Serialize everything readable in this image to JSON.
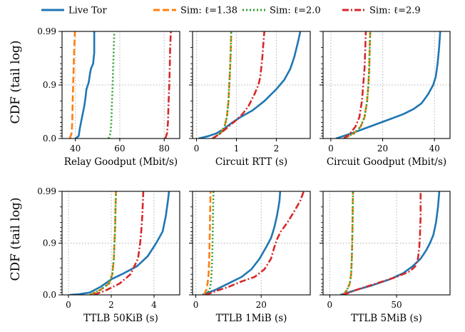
{
  "figure": {
    "ylabel": "CDF (tail log)"
  },
  "legend": [
    {
      "name": "Live Tor",
      "color": "#1f77b4",
      "dash": "solid"
    },
    {
      "name": "Sim: ℓ=1.38",
      "color": "#ff7f0e",
      "dash": "dashed"
    },
    {
      "name": "Sim: ℓ=2.0",
      "color": "#2ca02c",
      "dash": "dotted"
    },
    {
      "name": "Sim: ℓ=2.9",
      "color": "#d62728",
      "dash": "dashdot"
    }
  ],
  "chart_data": [
    {
      "type": "line",
      "xlabel": "Relay Goodput (Mbit/s)",
      "xlim": [
        34,
        87
      ],
      "xticks": [
        40,
        60,
        80
      ],
      "yticks": [
        "0.0",
        "0.9",
        "0.99"
      ],
      "grid": true,
      "series": [
        {
          "name": "Live Tor",
          "x": [
            40,
            41.5,
            42,
            43,
            44,
            44.5,
            45,
            46,
            46.5,
            47,
            48,
            48.5,
            48.5
          ],
          "y": [
            0,
            0.1,
            0.35,
            0.6,
            0.75,
            0.82,
            0.88,
            0.91,
            0.935,
            0.95,
            0.96,
            0.975,
            0.99
          ]
        },
        {
          "name": "Sim: ℓ=1.38",
          "x": [
            37.5,
            38.3,
            38.6,
            38.8,
            39.0,
            39.2,
            39.5,
            39.8
          ],
          "y": [
            0,
            0.2,
            0.5,
            0.8,
            0.9,
            0.95,
            0.98,
            0.99
          ]
        },
        {
          "name": "Sim: ℓ=2.0",
          "x": [
            55,
            55.8,
            56.2,
            56.5,
            56.8,
            57.0,
            57.3,
            57.5
          ],
          "y": [
            0,
            0.2,
            0.5,
            0.8,
            0.9,
            0.95,
            0.98,
            0.99
          ]
        },
        {
          "name": "Sim: ℓ=2.9",
          "x": [
            80.5,
            81.3,
            81.7,
            82.0,
            82.3,
            82.5,
            82.7,
            83.0
          ],
          "y": [
            0,
            0.2,
            0.5,
            0.8,
            0.9,
            0.95,
            0.98,
            0.99
          ]
        }
      ]
    },
    {
      "type": "line",
      "xlabel": "Circuit RTT (s)",
      "xlim": [
        -0.1,
        2.85
      ],
      "xticks": [
        0,
        1,
        2
      ],
      "yticks": [
        "0.0",
        "0.9",
        "0.99"
      ],
      "grid": true,
      "series": [
        {
          "name": "Live Tor",
          "x": [
            0.05,
            0.3,
            0.5,
            0.7,
            0.9,
            1.1,
            1.4,
            1.7,
            2.0,
            2.2,
            2.35,
            2.45,
            2.55,
            2.6
          ],
          "y": [
            0,
            0.1,
            0.2,
            0.35,
            0.5,
            0.6,
            0.7,
            0.8,
            0.88,
            0.92,
            0.95,
            0.97,
            0.985,
            0.99
          ]
        },
        {
          "name": "Sim: ℓ=1.38",
          "x": [
            0.4,
            0.6,
            0.7,
            0.76,
            0.8,
            0.82,
            0.84,
            0.86,
            0.87
          ],
          "y": [
            0,
            0.2,
            0.4,
            0.6,
            0.8,
            0.9,
            0.95,
            0.98,
            0.99
          ]
        },
        {
          "name": "Sim: ℓ=2.0",
          "x": [
            0.4,
            0.6,
            0.7,
            0.76,
            0.8,
            0.82,
            0.84,
            0.86,
            0.87
          ],
          "y": [
            0,
            0.2,
            0.4,
            0.6,
            0.8,
            0.9,
            0.95,
            0.98,
            0.99
          ]
        },
        {
          "name": "Sim: ℓ=2.9",
          "x": [
            0.4,
            0.6,
            0.8,
            1.0,
            1.15,
            1.3,
            1.45,
            1.55,
            1.6,
            1.62,
            1.65,
            1.68,
            1.7
          ],
          "y": [
            0,
            0.2,
            0.4,
            0.55,
            0.65,
            0.75,
            0.85,
            0.9,
            0.93,
            0.95,
            0.97,
            0.985,
            0.99
          ]
        }
      ]
    },
    {
      "type": "line",
      "xlabel": "Circuit Goodput (Mbit/s)",
      "xlim": [
        -3,
        46
      ],
      "xticks": [
        0,
        20,
        40
      ],
      "yticks": [
        "0.0",
        "0.9",
        "0.99"
      ],
      "grid": true,
      "series": [
        {
          "name": "Live Tor",
          "x": [
            2,
            8,
            15,
            22,
            28,
            32,
            35,
            37.5,
            39.5,
            40.5,
            41.2,
            41.8,
            42.2
          ],
          "y": [
            0,
            0.2,
            0.4,
            0.55,
            0.65,
            0.72,
            0.78,
            0.85,
            0.9,
            0.93,
            0.96,
            0.98,
            0.99
          ]
        },
        {
          "name": "Sim: ℓ=1.38",
          "x": [
            5,
            9,
            11.5,
            13,
            14,
            14.5,
            14.8,
            15,
            15.2
          ],
          "y": [
            0,
            0.2,
            0.4,
            0.6,
            0.8,
            0.9,
            0.95,
            0.98,
            0.99
          ]
        },
        {
          "name": "Sim: ℓ=2.0",
          "x": [
            5,
            9,
            11.5,
            13,
            14,
            14.5,
            14.8,
            15,
            15.2
          ],
          "y": [
            0,
            0.2,
            0.4,
            0.6,
            0.8,
            0.9,
            0.95,
            0.98,
            0.99
          ]
        },
        {
          "name": "Sim: ℓ=2.9",
          "x": [
            5,
            7.5,
            9.5,
            11,
            12,
            12.5,
            13,
            13.3,
            13.5
          ],
          "y": [
            0,
            0.2,
            0.4,
            0.6,
            0.8,
            0.9,
            0.95,
            0.98,
            0.99
          ]
        }
      ]
    },
    {
      "type": "line",
      "xlabel": "TTLB 50KiB (s)",
      "xlim": [
        -0.3,
        5.2
      ],
      "xticks": [
        0,
        2,
        4
      ],
      "yticks": [
        "0.0",
        "0.9",
        "0.99"
      ],
      "grid": true,
      "series": [
        {
          "name": "Live Tor",
          "x": [
            0.05,
            0.5,
            1.0,
            1.5,
            2.0,
            2.6,
            3.2,
            3.7,
            4.1,
            4.4,
            4.55,
            4.65,
            4.7
          ],
          "y": [
            0,
            0.03,
            0.1,
            0.3,
            0.5,
            0.62,
            0.72,
            0.82,
            0.9,
            0.94,
            0.97,
            0.985,
            0.99
          ]
        },
        {
          "name": "Sim: ℓ=1.38",
          "x": [
            1.0,
            1.5,
            1.9,
            2.05,
            2.12,
            2.15,
            2.18,
            2.2,
            2.22
          ],
          "y": [
            0,
            0.2,
            0.4,
            0.6,
            0.8,
            0.9,
            0.95,
            0.98,
            0.99
          ]
        },
        {
          "name": "Sim: ℓ=2.0",
          "x": [
            1.0,
            1.5,
            1.9,
            2.05,
            2.12,
            2.15,
            2.18,
            2.2,
            2.22
          ],
          "y": [
            0,
            0.2,
            0.4,
            0.6,
            0.8,
            0.9,
            0.95,
            0.98,
            0.99
          ]
        },
        {
          "name": "Sim: ℓ=2.9",
          "x": [
            1.2,
            1.8,
            2.4,
            2.9,
            3.25,
            3.35,
            3.4,
            3.45,
            3.48,
            3.5
          ],
          "y": [
            0,
            0.2,
            0.4,
            0.6,
            0.8,
            0.9,
            0.94,
            0.97,
            0.985,
            0.99
          ]
        }
      ]
    },
    {
      "type": "line",
      "xlabel": "TTLB 1MiB (s)",
      "xlim": [
        -1,
        35
      ],
      "xticks": [
        0,
        20
      ],
      "yticks": [
        "0.0",
        "0.9",
        "0.99"
      ],
      "grid": true,
      "series": [
        {
          "name": "Live Tor",
          "x": [
            2,
            6,
            10,
            14,
            17,
            19.5,
            21.5,
            23,
            24,
            24.8,
            25.3,
            25.6,
            25.8
          ],
          "y": [
            0,
            0.2,
            0.4,
            0.55,
            0.68,
            0.8,
            0.88,
            0.92,
            0.95,
            0.97,
            0.98,
            0.985,
            0.99
          ]
        },
        {
          "name": "Sim: ℓ=1.38",
          "x": [
            2.5,
            3.2,
            3.6,
            3.9,
            4.1,
            4.2,
            4.3,
            4.4,
            4.5
          ],
          "y": [
            0,
            0.2,
            0.4,
            0.6,
            0.8,
            0.9,
            0.95,
            0.98,
            0.99
          ]
        },
        {
          "name": "Sim: ℓ=2.0",
          "x": [
            3,
            4.2,
            4.6,
            4.8,
            5.0,
            5.1,
            5.2,
            5.3,
            5.4
          ],
          "y": [
            0,
            0.2,
            0.4,
            0.6,
            0.8,
            0.9,
            0.95,
            0.98,
            0.99
          ]
        },
        {
          "name": "Sim: ℓ=2.9",
          "x": [
            3,
            6,
            10,
            14,
            18,
            21,
            23,
            24,
            25,
            26,
            28,
            30,
            32,
            33
          ],
          "y": [
            0,
            0.15,
            0.3,
            0.45,
            0.55,
            0.68,
            0.8,
            0.88,
            0.92,
            0.94,
            0.96,
            0.975,
            0.985,
            0.99
          ]
        }
      ]
    },
    {
      "type": "line",
      "xlabel": "TTLB 5MiB (s)",
      "xlim": [
        -5,
        90
      ],
      "xticks": [
        0,
        50
      ],
      "yticks": [
        "0.0",
        "0.9",
        "0.99"
      ],
      "grid": true,
      "series": [
        {
          "name": "Live Tor",
          "x": [
            8,
            20,
            32,
            45,
            55,
            62,
            68,
            72,
            75,
            77.5,
            79.5,
            81,
            82
          ],
          "y": [
            0,
            0.2,
            0.35,
            0.5,
            0.62,
            0.72,
            0.8,
            0.86,
            0.9,
            0.93,
            0.96,
            0.98,
            0.99
          ]
        },
        {
          "name": "Sim: ℓ=1.38",
          "x": [
            10,
            13,
            15,
            16,
            16.5,
            16.8,
            17,
            17.2,
            17.4
          ],
          "y": [
            0,
            0.2,
            0.4,
            0.6,
            0.8,
            0.9,
            0.95,
            0.98,
            0.99
          ]
        },
        {
          "name": "Sim: ℓ=2.0",
          "x": [
            10,
            13,
            15,
            16,
            16.5,
            16.8,
            17,
            17.2,
            17.4
          ],
          "y": [
            0,
            0.2,
            0.4,
            0.6,
            0.8,
            0.9,
            0.95,
            0.98,
            0.99
          ]
        },
        {
          "name": "Sim: ℓ=2.9",
          "x": [
            10,
            20,
            35,
            50,
            60,
            64,
            66,
            67,
            67.5,
            68,
            68
          ],
          "y": [
            0,
            0.2,
            0.4,
            0.55,
            0.65,
            0.72,
            0.8,
            0.88,
            0.93,
            0.97,
            0.99
          ]
        }
      ]
    }
  ]
}
